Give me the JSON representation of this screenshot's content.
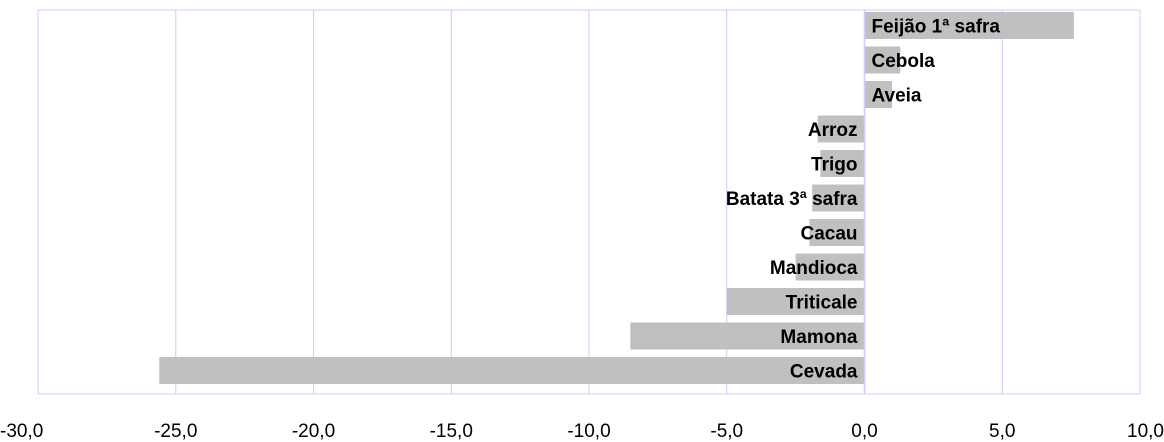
{
  "chart_data": {
    "type": "bar",
    "orientation": "horizontal",
    "title": "",
    "xlabel": "",
    "ylabel": "",
    "xlim": [
      -30,
      10
    ],
    "ticks": [
      -30,
      -25,
      -20,
      -15,
      -10,
      -5,
      0,
      5,
      10
    ],
    "tick_labels": [
      "-30,0",
      "-25,0",
      "-20,0",
      "-15,0",
      "-10,0",
      "-5,0",
      "0,0",
      "5,0",
      "10,0"
    ],
    "categories": [
      "Feijão 1ª safra",
      "Cebola",
      "Aveia",
      "Arroz",
      "Trigo",
      "Batata 3ª safra",
      "Cacau",
      "Mandioca",
      "Triticale",
      "Mamona",
      "Cevada"
    ],
    "values": [
      7.6,
      1.3,
      1.0,
      -1.7,
      -1.6,
      -1.9,
      -2.0,
      -2.5,
      -5.0,
      -8.5,
      -25.6
    ],
    "grid": true,
    "legend": "none",
    "colors": {
      "bar": "#c0c0c0",
      "grid": "#ccccff",
      "frame": "#ccccff",
      "zero_line": "#ccccff"
    }
  }
}
